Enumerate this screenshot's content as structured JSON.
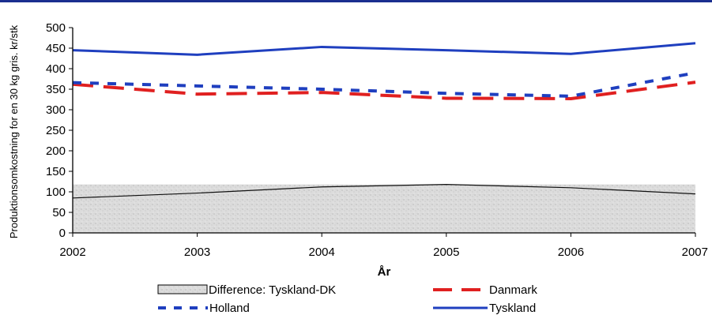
{
  "chart_data": {
    "type": "line",
    "ylabel": "Produktionsomkostning for en 30 kg gris. kr/stk",
    "xlabel": "År",
    "x": [
      2002,
      2003,
      2004,
      2005,
      2006,
      2007
    ],
    "x_ticks": [
      "2002",
      "2003",
      "2004",
      "2005",
      "2006",
      "2007"
    ],
    "ylim": [
      0,
      500
    ],
    "y_ticks": [
      "0",
      "50",
      "100",
      "150",
      "200",
      "250",
      "300",
      "350",
      "400",
      "450",
      "500"
    ],
    "grid": false,
    "legend_position": "bottom",
    "series": [
      {
        "name": "Difference: Tyskland-DK",
        "kind": "area",
        "color": "#d9d9d9",
        "values": [
          85,
          97,
          112,
          118,
          110,
          95
        ]
      },
      {
        "name": "Danmark",
        "kind": "line",
        "style": "long-dash",
        "color": "#e02020",
        "values": [
          362,
          338,
          342,
          328,
          327,
          367
        ]
      },
      {
        "name": "Holland",
        "kind": "line",
        "style": "short-dash",
        "color": "#1f3fbf",
        "values": [
          366,
          358,
          350,
          340,
          333,
          390
        ]
      },
      {
        "name": "Tyskland",
        "kind": "line",
        "style": "solid",
        "color": "#1f3fbf",
        "values": [
          445,
          434,
          453,
          445,
          436,
          462
        ]
      }
    ]
  }
}
